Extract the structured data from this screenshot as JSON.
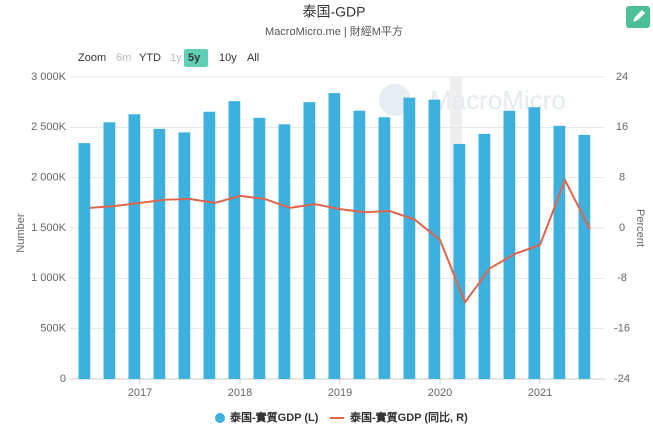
{
  "chart_data": {
    "type": "bar_line",
    "title": "泰国-GDP",
    "subtitle": "MacroMicro.me | 財經M平方",
    "watermark": "MacroMicro",
    "zoom": {
      "label": "Zoom",
      "options": [
        "6m",
        "YTD",
        "1y",
        "5y",
        "10y",
        "All"
      ],
      "active": "5y"
    },
    "ylabel": "Number",
    "y2label": "Percent",
    "categories": [
      null,
      null,
      "2017",
      null,
      null,
      null,
      "2018",
      null,
      null,
      null,
      "2019",
      null,
      null,
      null,
      "2020",
      null,
      null,
      null,
      "2021",
      null,
      null
    ],
    "series": [
      {
        "name": "泰国-實質GDP (L)",
        "color": "#3eb0de",
        "axis": "y",
        "values": [
          2343,
          2550,
          2630,
          2485,
          2450,
          2655,
          2760,
          2595,
          2530,
          2750,
          2840,
          2665,
          2600,
          2795,
          2775,
          2335,
          2435,
          2665,
          2700,
          2515,
          2425
        ]
      },
      {
        "name": "泰国-實質GDP (同比, R)",
        "color": "#e0654c",
        "axis": "y2",
        "values": [
          3.2,
          3.5,
          4.0,
          4.5,
          4.6,
          4.0,
          5.1,
          4.6,
          3.2,
          3.8,
          3.0,
          2.5,
          2.7,
          1.3,
          -1.9,
          -11.8,
          -6.4,
          -4.1,
          -2.7,
          7.6,
          -0.2
        ]
      }
    ],
    "ylim": [
      0,
      3000
    ],
    "yticks": [
      {
        "value": 0,
        "label": "0"
      },
      {
        "value": 500,
        "label": "500K"
      },
      {
        "value": 1000,
        "label": "1 000K"
      },
      {
        "value": 1500,
        "label": "1 500K"
      },
      {
        "value": 2000,
        "label": "2 000K"
      },
      {
        "value": 2500,
        "label": "2 500K"
      },
      {
        "value": 3000,
        "label": "3 000K"
      }
    ],
    "y2lim": [
      -24,
      24
    ],
    "y2ticks": [
      -24,
      -16,
      -8,
      0,
      8,
      16,
      24
    ],
    "grid": true
  }
}
